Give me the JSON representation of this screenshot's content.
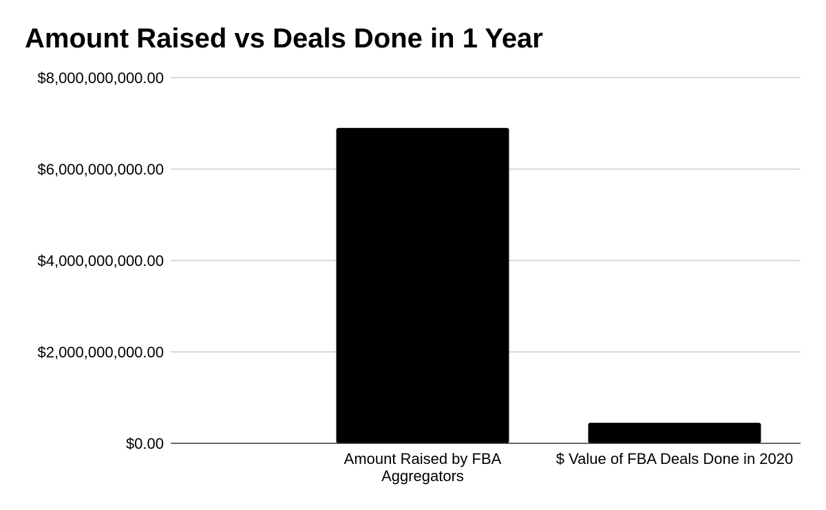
{
  "chart_data": {
    "type": "bar",
    "title": "Amount Raised vs Deals Done in 1 Year",
    "xlabel": "",
    "ylabel": "",
    "categories": [
      [
        "Amount Raised by FBA",
        "Aggregators"
      ],
      [
        "$ Value of FBA Deals Done in 2020"
      ]
    ],
    "values": [
      6900000000,
      450000000
    ],
    "ylim": [
      0,
      8000000000
    ],
    "yticks": [
      0,
      2000000000,
      4000000000,
      6000000000,
      8000000000
    ],
    "ytick_labels": [
      "$0.00",
      "$2,000,000,000.00",
      "$4,000,000,000.00",
      "$6,000,000,000.00",
      "$8,000,000,000.00"
    ],
    "grid": true,
    "legend": "none",
    "colors": {
      "bar": "#000000",
      "grid": "#cccccc",
      "axis": "#333333",
      "text": "#000000"
    }
  }
}
